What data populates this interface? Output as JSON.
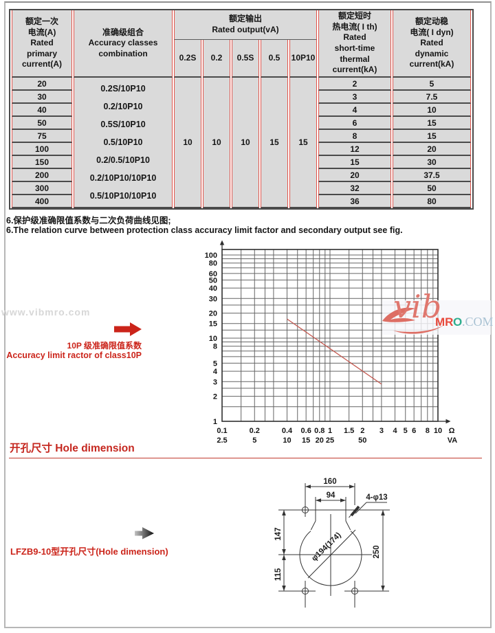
{
  "page": {
    "watermark": "www.vibmro.com",
    "note_cn": "6.保护级准确限值系数与二次负荷曲线见图;",
    "note_en": "6.The relation curve between protection class accuracy limit factor and secondary output see fig.",
    "section_heading": "开孔尺寸 Hole dimension",
    "drawing_caption": "LFZB9-10型开孔尺寸(Hole dimension)",
    "logo": {
      "script": "vib",
      "mr": "MR",
      "o": "O",
      "com": ".COM"
    }
  },
  "table": {
    "headers": {
      "primary_current": "额定一次\n电流(A)\nRated\nprimary\ncurrent(A)",
      "accuracy": "准确级组合\nAccuracy classes\ncombination",
      "rated_output": "额定输出\nRated output(vA)",
      "output_classes": [
        "0.2S",
        "0.2",
        "0.5S",
        "0.5",
        "10P10"
      ],
      "thermal": "额定短时\n热电流( I th)\nRated\nshort-time\nthermal\ncurrent(kA)",
      "dynamic": "额定动稳\n电流( I dyn)\nRated\ndynamic\ncurrent(kA)"
    },
    "accuracy_combinations": [
      "0.2S/10P10",
      "0.2/10P10",
      "0.5S/10P10",
      "0.5/10P10",
      "0.2/0.5/10P10",
      "0.2/10P10/10P10",
      "0.5/10P10/10P10"
    ],
    "output_values": [
      "10",
      "10",
      "10",
      "15",
      "15"
    ],
    "rows": [
      {
        "primary": "20",
        "thermal": "2",
        "dynamic": "5"
      },
      {
        "primary": "30",
        "thermal": "3",
        "dynamic": "7.5"
      },
      {
        "primary": "40",
        "thermal": "4",
        "dynamic": "10"
      },
      {
        "primary": "50",
        "thermal": "6",
        "dynamic": "15"
      },
      {
        "primary": "75",
        "thermal": "8",
        "dynamic": "15"
      },
      {
        "primary": "100",
        "thermal": "12",
        "dynamic": "20"
      },
      {
        "primary": "150",
        "thermal": "15",
        "dynamic": "30"
      },
      {
        "primary": "200",
        "thermal": "20",
        "dynamic": "37.5"
      },
      {
        "primary": "300",
        "thermal": "32",
        "dynamic": "50"
      },
      {
        "primary": "400",
        "thermal": "36",
        "dynamic": "80"
      }
    ]
  },
  "annotation": {
    "line1": "10P 级准确限值系数",
    "line2": "Accuracy limit ractor of class10P",
    "color": "#cb241a"
  },
  "chart_data": {
    "type": "line",
    "title": "Protection class accuracy limit factor vs secondary burden",
    "x_axis": {
      "scale": "log",
      "min": 0.1,
      "max": 10,
      "unit_top": "Ω",
      "unit_bottom": "VA",
      "ticks_ohm": [
        [
          0.1,
          "0.1"
        ],
        [
          0.2,
          "0.2"
        ],
        [
          0.4,
          "0.4"
        ],
        [
          0.6,
          "0.6"
        ],
        [
          0.8,
          "0.8"
        ],
        [
          1,
          "1"
        ],
        [
          1.5,
          "1.5"
        ],
        [
          2,
          "2"
        ],
        [
          3,
          "3"
        ],
        [
          4,
          "4"
        ],
        [
          5,
          "5"
        ],
        [
          6,
          "6"
        ],
        [
          8,
          "8"
        ],
        [
          10,
          "10"
        ]
      ],
      "ticks_va": [
        [
          0.1,
          "2.5"
        ],
        [
          0.2,
          "5"
        ],
        [
          0.4,
          "10"
        ],
        [
          0.6,
          "15"
        ],
        [
          0.8,
          "20"
        ],
        [
          1,
          "25"
        ],
        [
          2,
          "50"
        ]
      ],
      "gridlines": [
        0.1,
        0.15,
        0.2,
        0.25,
        0.3,
        0.4,
        0.5,
        0.6,
        0.7,
        0.8,
        0.9,
        1,
        1.5,
        2,
        2.5,
        3,
        4,
        5,
        6,
        7,
        8,
        9,
        10
      ]
    },
    "y_axis": {
      "scale": "log",
      "min": 1,
      "max": 100,
      "ticks": [
        [
          1,
          "1"
        ],
        [
          2,
          "2"
        ],
        [
          3,
          "3"
        ],
        [
          4,
          "4"
        ],
        [
          5,
          "5"
        ],
        [
          8,
          "8"
        ],
        [
          10,
          "10"
        ],
        [
          15,
          "15"
        ],
        [
          20,
          "20"
        ],
        [
          30,
          "30"
        ],
        [
          40,
          "40"
        ],
        [
          50,
          "50"
        ],
        [
          60,
          "60"
        ],
        [
          80,
          "80"
        ],
        [
          100,
          "100"
        ]
      ],
      "gridlines": [
        1,
        1.5,
        2,
        2.5,
        3,
        4,
        5,
        6,
        7,
        8,
        9,
        10,
        12.5,
        15,
        20,
        25,
        30,
        40,
        50,
        60,
        70,
        80,
        90,
        100
      ]
    },
    "grid": true,
    "series": [
      {
        "name": "10P accuracy limit factor",
        "color": "#c4584f",
        "points": [
          [
            0.4,
            17
          ],
          [
            3,
            2.8
          ]
        ]
      }
    ]
  },
  "drawing": {
    "dims": {
      "outer_width": "160",
      "neck_width": "94",
      "holes": "4-φ13",
      "upper_height": "147",
      "lower_height": "115",
      "total_height": "250",
      "diameter": "φ194(174)"
    }
  }
}
